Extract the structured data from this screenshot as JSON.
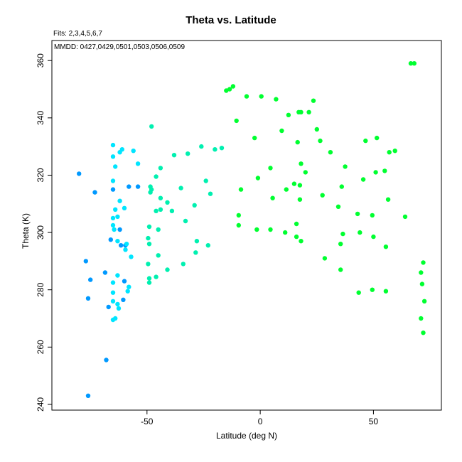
{
  "chart_data": {
    "type": "scatter",
    "title": "Theta vs. Latitude",
    "subtitle": "Fits: 2,3,4,5,6,7",
    "annotation": "MMDD: 0427,0429,0501,0503,0506,0509",
    "xlabel": "Latitude (deg N)",
    "ylabel": "Theta (K)",
    "xlim": [
      -92,
      80
    ],
    "ylim": [
      238,
      367
    ],
    "xticks": [
      -50,
      0,
      50
    ],
    "yticks": [
      240,
      260,
      280,
      300,
      320,
      340,
      360
    ],
    "grid": false,
    "series": [
      {
        "color": "#0099ff",
        "points": [
          [
            -80,
            320.5
          ],
          [
            -73,
            314
          ],
          [
            -77,
            290
          ],
          [
            -76,
            277
          ],
          [
            -75,
            283.5
          ],
          [
            -76,
            243
          ],
          [
            -68.5,
            286
          ],
          [
            -68,
            255.5
          ],
          [
            -67,
            274
          ],
          [
            -66,
            297.5
          ],
          [
            -65,
            315
          ],
          [
            -62,
            301
          ],
          [
            -61.5,
            295.5
          ],
          [
            -60,
            283
          ],
          [
            -60.5,
            276.5
          ],
          [
            -59.5,
            295.5
          ],
          [
            -58,
            316
          ],
          [
            -54,
            316
          ]
        ]
      },
      {
        "color": "#00e5ff",
        "points": [
          [
            -65,
            330.5
          ],
          [
            -65,
            326.5
          ],
          [
            -64,
            323
          ],
          [
            -62,
            328
          ],
          [
            -61,
            329
          ],
          [
            -56,
            328.5
          ],
          [
            -54,
            324
          ],
          [
            -65,
            318
          ],
          [
            -64,
            308
          ],
          [
            -63,
            305.5
          ],
          [
            -62,
            311
          ],
          [
            -60,
            308.5
          ],
          [
            -65,
            305
          ],
          [
            -65,
            302.5
          ],
          [
            -64.5,
            301
          ],
          [
            -63,
            297
          ],
          [
            -59,
            296
          ],
          [
            -59.5,
            294
          ],
          [
            -57,
            291.5
          ],
          [
            -65,
            282.5
          ],
          [
            -63,
            275
          ],
          [
            -62.5,
            273.5
          ],
          [
            -65,
            276
          ],
          [
            -64,
            270
          ],
          [
            -65,
            269.5
          ],
          [
            -65,
            279
          ],
          [
            -58,
            281
          ],
          [
            -58.5,
            279.5
          ],
          [
            -63,
            285
          ]
        ]
      },
      {
        "color": "#00f0b0",
        "points": [
          [
            -48,
            337
          ],
          [
            -48,
            315
          ],
          [
            -48.5,
            316
          ],
          [
            -46,
            319.5
          ],
          [
            -44,
            322.5
          ],
          [
            -38,
            327
          ],
          [
            -32,
            327.5
          ],
          [
            -26,
            330
          ],
          [
            -17,
            329.5
          ],
          [
            -44,
            312
          ],
          [
            -46,
            307.5
          ],
          [
            -44,
            308
          ],
          [
            -41,
            310.5
          ],
          [
            -39,
            307.5
          ],
          [
            -35,
            315.5
          ],
          [
            -29,
            309.5
          ],
          [
            -24,
            318
          ],
          [
            -22,
            313.5
          ],
          [
            -20,
            329
          ],
          [
            -48.5,
            314
          ],
          [
            -49,
            302
          ],
          [
            -45,
            301
          ],
          [
            -49.5,
            298
          ],
          [
            -49,
            296
          ],
          [
            -45,
            292
          ],
          [
            -41,
            287
          ],
          [
            -34,
            289
          ],
          [
            -33,
            304
          ],
          [
            -28,
            297
          ],
          [
            -28.5,
            293
          ],
          [
            -23,
            295.5
          ],
          [
            -49,
            284
          ],
          [
            -49,
            282.5
          ],
          [
            -46,
            284.5
          ],
          [
            -49.5,
            289
          ]
        ]
      },
      {
        "color": "#00ff30",
        "points": [
          [
            -15,
            349.5
          ],
          [
            -13.5,
            350
          ],
          [
            -12,
            351
          ],
          [
            -6,
            347.5
          ],
          [
            0.5,
            347.5
          ],
          [
            7,
            346.5
          ],
          [
            23.5,
            346
          ],
          [
            12.5,
            341
          ],
          [
            17,
            342
          ],
          [
            18,
            342
          ],
          [
            21.5,
            342
          ],
          [
            -10.5,
            339
          ],
          [
            9.5,
            335.5
          ],
          [
            -2.5,
            333
          ],
          [
            25,
            336
          ],
          [
            16.5,
            331.5
          ],
          [
            26.5,
            332
          ],
          [
            31,
            328
          ],
          [
            37.5,
            323
          ],
          [
            18,
            324
          ],
          [
            4.5,
            322.5
          ],
          [
            20,
            321
          ],
          [
            -1,
            319
          ],
          [
            11.5,
            315
          ],
          [
            15,
            317
          ],
          [
            17.5,
            316.5
          ],
          [
            -8.5,
            315
          ],
          [
            5.5,
            312
          ],
          [
            17.5,
            311.5
          ],
          [
            27.5,
            313
          ],
          [
            36,
            316
          ],
          [
            34.5,
            309
          ],
          [
            -9.5,
            306
          ],
          [
            -9.5,
            302.5
          ],
          [
            -1.5,
            301
          ],
          [
            4.5,
            301
          ],
          [
            11,
            300
          ],
          [
            16,
            303
          ],
          [
            16,
            298.5
          ],
          [
            18,
            297
          ],
          [
            28.5,
            291
          ],
          [
            35.5,
            296
          ],
          [
            36.5,
            299.5
          ],
          [
            35.5,
            287
          ],
          [
            43,
            306.5
          ],
          [
            44,
            300
          ],
          [
            49.5,
            306
          ],
          [
            50,
            298.5
          ],
          [
            55.5,
            295
          ],
          [
            45.5,
            318.5
          ],
          [
            51,
            321
          ],
          [
            55,
            321.5
          ],
          [
            56.5,
            311.5
          ],
          [
            57,
            328
          ],
          [
            59.5,
            328.5
          ],
          [
            51.5,
            333
          ],
          [
            46.5,
            332
          ],
          [
            49.5,
            280
          ],
          [
            43.5,
            279
          ],
          [
            55.5,
            279.5
          ],
          [
            64,
            305.5
          ],
          [
            66.5,
            359
          ],
          [
            68,
            359
          ],
          [
            71,
            286
          ],
          [
            72,
            289.5
          ],
          [
            71.5,
            282
          ],
          [
            72.5,
            276
          ],
          [
            71,
            270
          ],
          [
            72,
            265
          ]
        ]
      }
    ]
  }
}
